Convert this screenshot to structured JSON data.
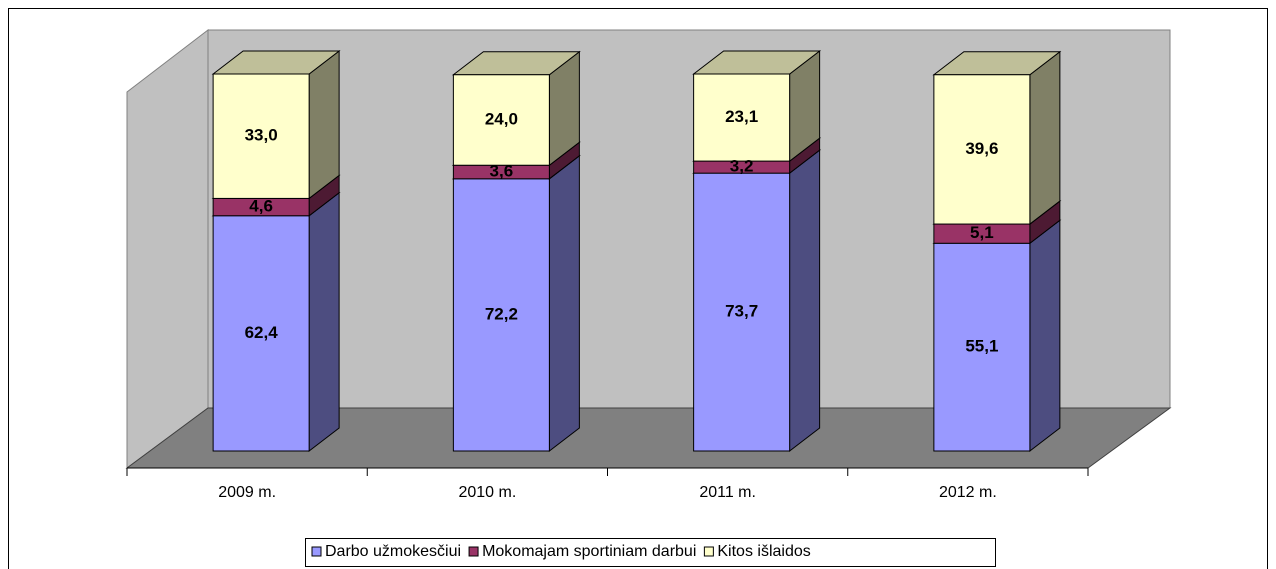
{
  "chart_data": {
    "type": "bar",
    "stacked": true,
    "three_d": true,
    "categories": [
      "2009 m.",
      "2010 m.",
      "2011 m.",
      "2012 m."
    ],
    "series": [
      {
        "name": "Darbo užmokesčiui",
        "color": "#9999ff",
        "values": [
          62.4,
          72.2,
          73.7,
          55.1
        ],
        "value_labels": [
          "62,4",
          "72,2",
          "73,7",
          "55,1"
        ]
      },
      {
        "name": "Mokomajam sportiniam darbui",
        "color": "#993366",
        "values": [
          4.6,
          3.6,
          3.2,
          5.1
        ],
        "value_labels": [
          "4,6",
          "3,6",
          "3,2",
          "5,1"
        ]
      },
      {
        "name": "Kitos išlaidos",
        "color": "#ffffcc",
        "values": [
          33.0,
          24.0,
          23.1,
          39.6
        ],
        "value_labels": [
          "33,0",
          "24,0",
          "23,1",
          "39,6"
        ]
      }
    ],
    "legend": "bottom"
  }
}
